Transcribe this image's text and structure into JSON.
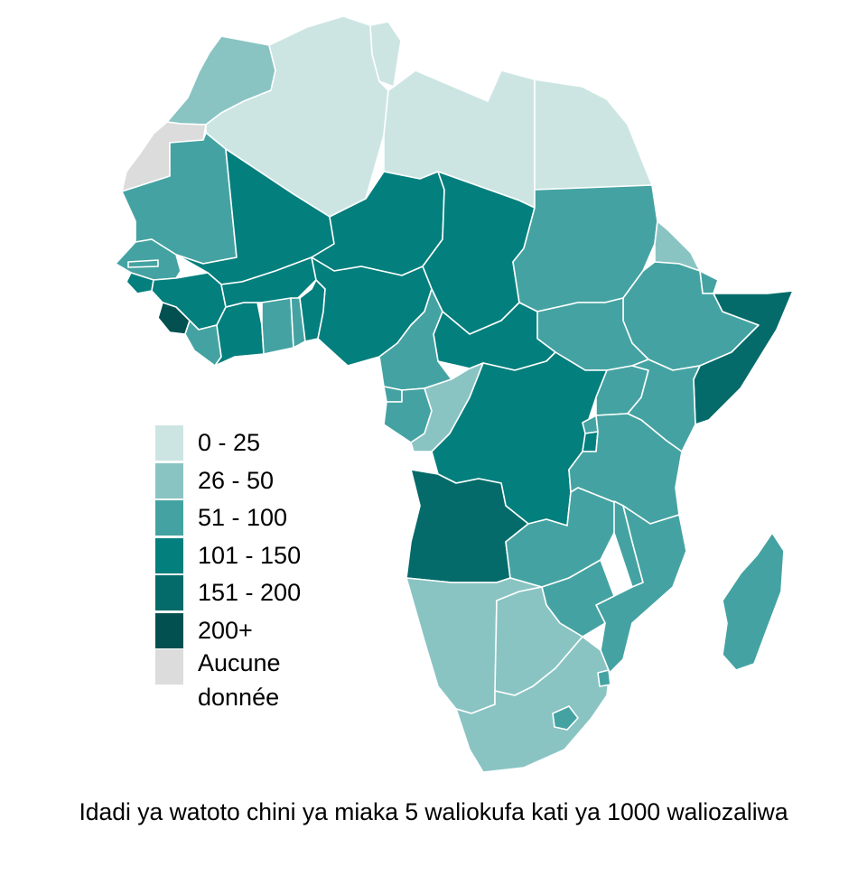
{
  "map": {
    "caption": "Idadi ya watoto chini ya miaka 5 waliokufa kati ya 1000 waliozaliwa",
    "legend": [
      {
        "label": "0 - 25",
        "color": "#cce5e3"
      },
      {
        "label": "26 - 50",
        "color": "#89c4c3"
      },
      {
        "label": "51 - 100",
        "color": "#44a3a2"
      },
      {
        "label": "101 - 150",
        "color": "#037f7d"
      },
      {
        "label": "151 - 200",
        "color": "#046b6a"
      },
      {
        "label": "200+",
        "color": "#02504f"
      },
      {
        "label": "Aucune donnée",
        "color": "#dcdcdc"
      }
    ],
    "countries": [
      {
        "name": "Morocco",
        "class": 1
      },
      {
        "name": "Western Sahara",
        "class": 6
      },
      {
        "name": "Algeria",
        "class": 0
      },
      {
        "name": "Tunisia",
        "class": 0
      },
      {
        "name": "Libya",
        "class": 0
      },
      {
        "name": "Egypt",
        "class": 0
      },
      {
        "name": "Mauritania",
        "class": 2
      },
      {
        "name": "Mali",
        "class": 3
      },
      {
        "name": "Niger",
        "class": 3
      },
      {
        "name": "Chad",
        "class": 3
      },
      {
        "name": "Sudan",
        "class": 2
      },
      {
        "name": "Eritrea",
        "class": 1
      },
      {
        "name": "Djibouti",
        "class": 2
      },
      {
        "name": "Ethiopia",
        "class": 2
      },
      {
        "name": "Somalia",
        "class": 4
      },
      {
        "name": "South Sudan",
        "class": 2
      },
      {
        "name": "Central African Republic",
        "class": 3
      },
      {
        "name": "Senegal",
        "class": 2
      },
      {
        "name": "Gambia",
        "class": 2
      },
      {
        "name": "Guinea-Bissau",
        "class": 3
      },
      {
        "name": "Guinea",
        "class": 3
      },
      {
        "name": "Sierra Leone",
        "class": 5
      },
      {
        "name": "Liberia",
        "class": 2
      },
      {
        "name": "Cote d'Ivoire",
        "class": 3
      },
      {
        "name": "Burkina Faso",
        "class": 3
      },
      {
        "name": "Ghana",
        "class": 2
      },
      {
        "name": "Togo",
        "class": 2
      },
      {
        "name": "Benin",
        "class": 3
      },
      {
        "name": "Nigeria",
        "class": 3
      },
      {
        "name": "Cameroon",
        "class": 2
      },
      {
        "name": "Equatorial Guinea",
        "class": 2
      },
      {
        "name": "Gabon",
        "class": 2
      },
      {
        "name": "Republic of the Congo",
        "class": 1
      },
      {
        "name": "DR Congo",
        "class": 3
      },
      {
        "name": "Uganda",
        "class": 2
      },
      {
        "name": "Kenya",
        "class": 2
      },
      {
        "name": "Rwanda",
        "class": 2
      },
      {
        "name": "Burundi",
        "class": 3
      },
      {
        "name": "Tanzania",
        "class": 2
      },
      {
        "name": "Angola",
        "class": 4
      },
      {
        "name": "Zambia",
        "class": 2
      },
      {
        "name": "Malawi",
        "class": 2
      },
      {
        "name": "Mozambique",
        "class": 2
      },
      {
        "name": "Zimbabwe",
        "class": 2
      },
      {
        "name": "Namibia",
        "class": 1
      },
      {
        "name": "Botswana",
        "class": 1
      },
      {
        "name": "South Africa",
        "class": 1
      },
      {
        "name": "Lesotho",
        "class": 2
      },
      {
        "name": "Eswatini",
        "class": 2
      },
      {
        "name": "Madagascar",
        "class": 2
      }
    ]
  }
}
